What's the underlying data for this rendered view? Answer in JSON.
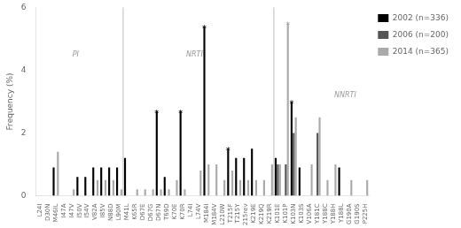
{
  "chart_data": {
    "type": "bar",
    "categories": [
      "L24I",
      "D30N",
      "M46IL",
      "I47A",
      "I47V",
      "I50V",
      "I54V",
      "V82A",
      "I85V",
      "N88D",
      "L90M",
      "M41L",
      "K65R",
      "D67E",
      "D67G",
      "D67N",
      "T69D",
      "K70E",
      "K70R",
      "L74I",
      "L74V",
      "M184I",
      "M184V",
      "L210W",
      "T215F",
      "T215Y",
      "215rev",
      "K219E",
      "K219Q",
      "K219R",
      "K101E",
      "K101P",
      "K103N",
      "K103S",
      "V106A",
      "Y181C",
      "Y188C",
      "Y188H",
      "Y188L",
      "G190A",
      "G190S",
      "P225H"
    ],
    "series": [
      {
        "name": "2002 (n=336)",
        "color": "#000000",
        "values": [
          0.0,
          0.0,
          0.9,
          0.0,
          0.0,
          0.6,
          0.6,
          0.9,
          0.9,
          0.9,
          0.9,
          1.2,
          0.0,
          0.0,
          0.0,
          2.7,
          0.6,
          0.0,
          2.7,
          0.0,
          0.0,
          5.4,
          0.0,
          0.0,
          1.5,
          1.2,
          1.2,
          1.5,
          0.0,
          0.0,
          1.2,
          0.0,
          3.0,
          0.9,
          0.0,
          0.0,
          0.0,
          0.0,
          0.9,
          0.0,
          0.0,
          0.0
        ]
      },
      {
        "name": "2006 (n=200)",
        "color": "#555555",
        "values": [
          0.0,
          0.0,
          0.0,
          0.0,
          0.0,
          0.0,
          0.0,
          0.0,
          0.0,
          0.0,
          0.0,
          0.0,
          0.0,
          0.0,
          0.0,
          0.0,
          0.0,
          0.0,
          0.0,
          0.0,
          0.0,
          0.0,
          0.0,
          0.0,
          0.0,
          0.0,
          0.0,
          0.0,
          0.0,
          0.0,
          1.0,
          1.0,
          2.0,
          0.0,
          0.0,
          2.0,
          0.0,
          0.0,
          0.0,
          0.0,
          0.0,
          0.0
        ]
      },
      {
        "name": "2014 (n=365)",
        "color": "#aaaaaa",
        "values": [
          0.0,
          0.0,
          1.4,
          0.0,
          0.2,
          0.0,
          0.0,
          0.5,
          0.5,
          0.5,
          0.2,
          0.0,
          0.2,
          0.2,
          0.2,
          0.2,
          0.2,
          0.5,
          0.2,
          0.0,
          0.8,
          1.0,
          1.0,
          0.5,
          0.8,
          0.5,
          0.5,
          0.5,
          0.5,
          1.0,
          1.0,
          5.5,
          2.5,
          0.0,
          1.0,
          2.5,
          0.5,
          1.0,
          0.0,
          0.5,
          0.0,
          0.5
        ]
      }
    ],
    "ylabel": "Frequency (%)",
    "ylim": [
      0,
      6
    ],
    "yticks": [
      0,
      2,
      4,
      6
    ],
    "grid": false,
    "legend": "right",
    "annotations": [
      {
        "text": "PI",
        "x": 4.5,
        "y": 4.5
      },
      {
        "text": "NRTI",
        "x": 19.5,
        "y": 4.5
      },
      {
        "text": "NNRTI",
        "x": 38.5,
        "y": 3.2
      },
      {
        "text": "*",
        "series": "2002 (n=336)",
        "categories": [
          "D67N",
          "K70R",
          "M184I",
          "T215F",
          "K103N"
        ]
      },
      {
        "text": "*",
        "series": "2014 (n=365)",
        "categories": [
          "K101P"
        ]
      }
    ],
    "dividers": [
      10.5,
      29.5
    ]
  }
}
